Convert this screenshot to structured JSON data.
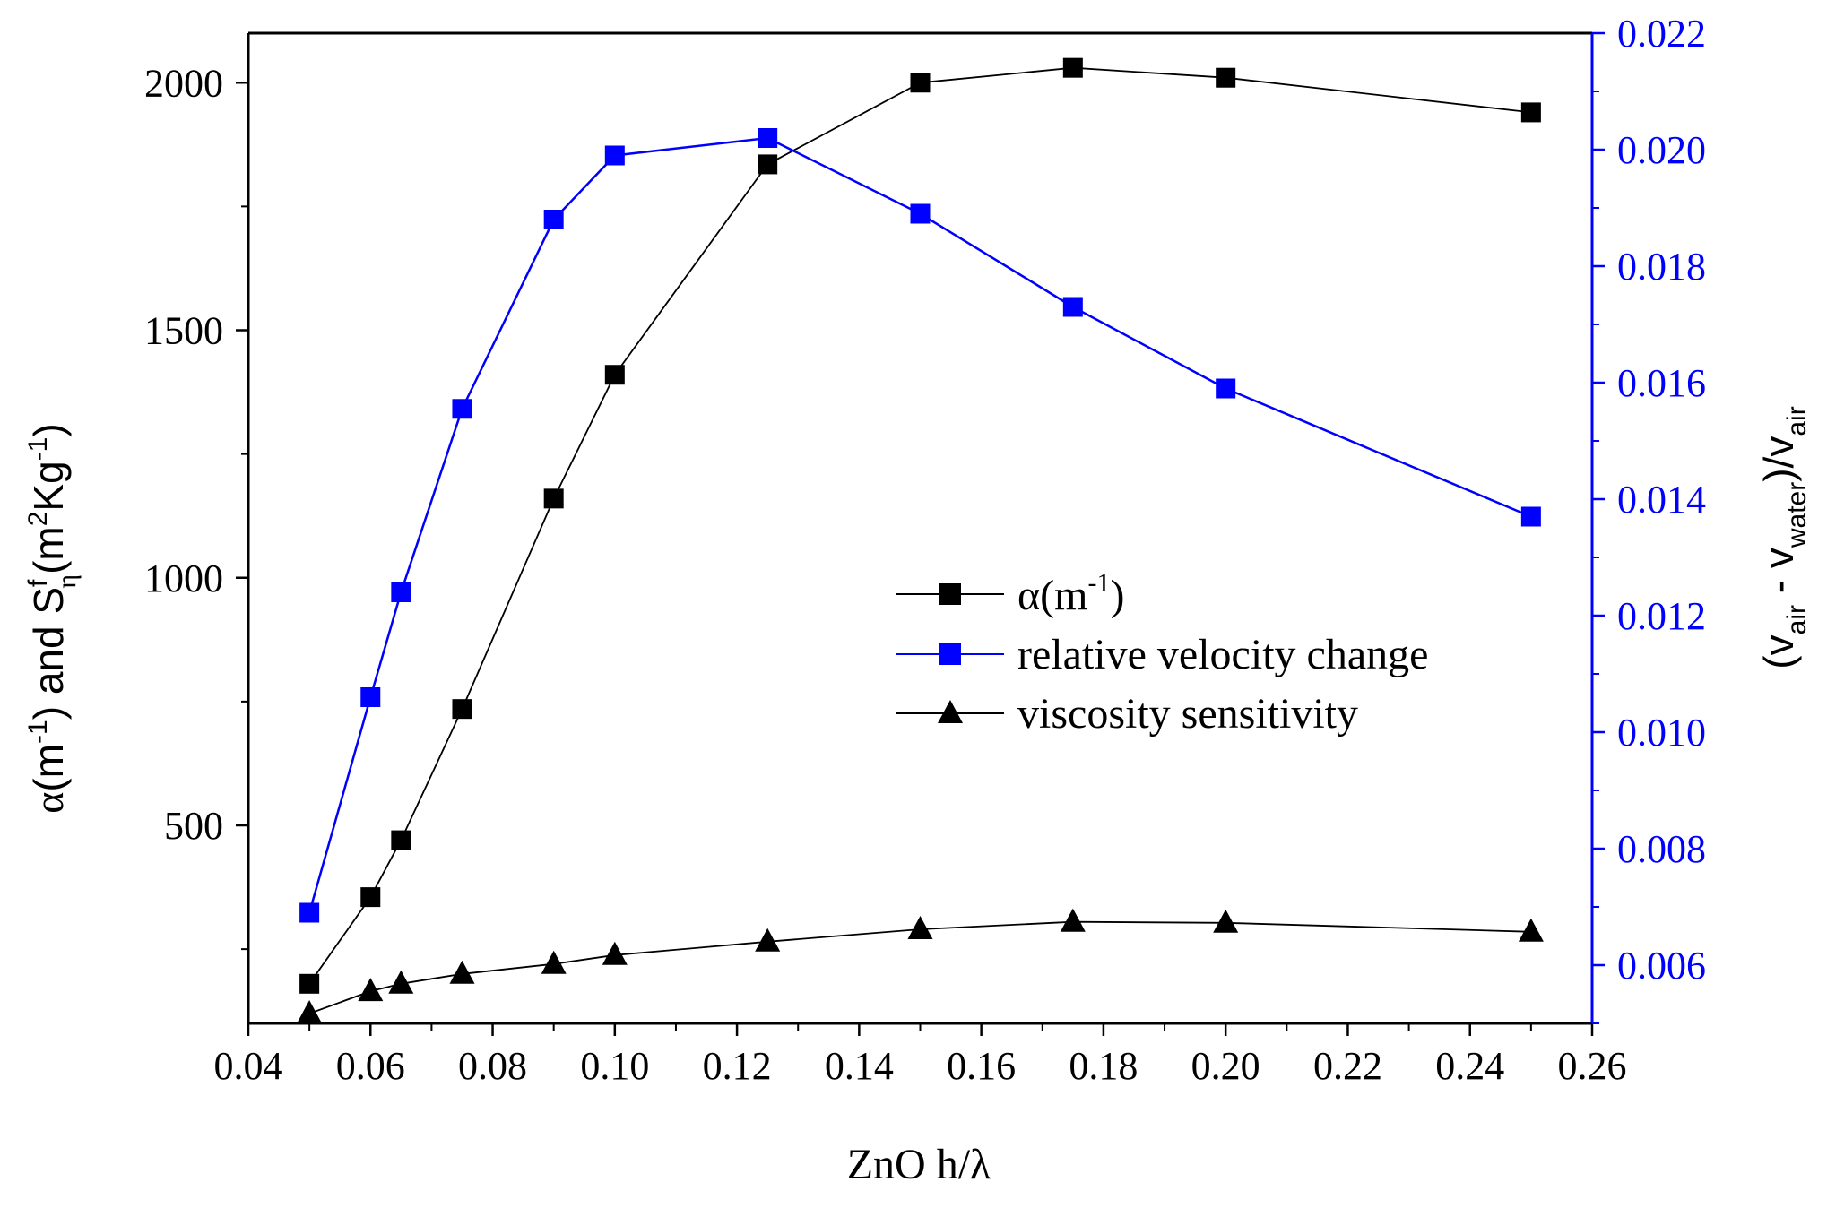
{
  "chart_data": {
    "type": "line",
    "title": "",
    "xlabel": "ZnO h/λ",
    "ylabel_left": {
      "alpha": "α",
      "m_open": "(m",
      "m_sup": "-1",
      "and_s": ") and S",
      "s_sup": "f",
      "s_sub": "η",
      "unit_open": "(m",
      "unit_sup1": "2",
      "unit_mid": "Kg",
      "unit_sup2": "-1",
      "unit_close": ")"
    },
    "ylabel_right": {
      "open": "(v",
      "sub1": "air",
      "minus": " - v",
      "sub2": "water",
      "close": ")/v",
      "sub3": "air"
    },
    "xlim": [
      0.04,
      0.26
    ],
    "ylim_left": [
      100,
      2100
    ],
    "ylim_right": [
      0.005,
      0.022
    ],
    "x_ticks": [
      0.04,
      0.06,
      0.08,
      0.1,
      0.12,
      0.14,
      0.16,
      0.18,
      0.2,
      0.22,
      0.24,
      0.26
    ],
    "x_tick_labels": [
      "0.04",
      "0.06",
      "0.08",
      "0.10",
      "0.12",
      "0.14",
      "0.16",
      "0.18",
      "0.20",
      "0.22",
      "0.24",
      "0.26"
    ],
    "y_left_ticks": [
      500,
      1000,
      1500,
      2000
    ],
    "y_left_tick_labels": [
      "500",
      "1000",
      "1500",
      "2000"
    ],
    "y_right_ticks": [
      0.006,
      0.008,
      0.01,
      0.012,
      0.014,
      0.016,
      0.018,
      0.02,
      0.022
    ],
    "y_right_tick_labels": [
      "0.006",
      "0.008",
      "0.010",
      "0.012",
      "0.014",
      "0.016",
      "0.018",
      "0.020",
      "0.022"
    ],
    "grid": false,
    "legend_position": "center",
    "series": [
      {
        "id": "alpha",
        "name": "α(m",
        "name_sup": "-1",
        "name_close": ")",
        "axis": "left",
        "marker": "square",
        "color": "#000000",
        "x": [
          0.05,
          0.06,
          0.065,
          0.075,
          0.09,
          0.1,
          0.125,
          0.15,
          0.175,
          0.2,
          0.25
        ],
        "y": [
          180,
          355,
          470,
          735,
          1160,
          1410,
          1835,
          2000,
          2030,
          2010,
          1940
        ]
      },
      {
        "id": "relvel",
        "name": "relative velocity change",
        "axis": "right",
        "marker": "square",
        "color": "#0000ff",
        "x": [
          0.05,
          0.06,
          0.065,
          0.075,
          0.09,
          0.1,
          0.125,
          0.15,
          0.175,
          0.2,
          0.25
        ],
        "y": [
          0.0069,
          0.0106,
          0.0124,
          0.01555,
          0.0188,
          0.0199,
          0.0202,
          0.0189,
          0.0173,
          0.0159,
          0.0137
        ]
      },
      {
        "id": "visc",
        "name": "viscosity sensitivity",
        "axis": "left",
        "marker": "triangle",
        "color": "#000000",
        "x": [
          0.05,
          0.06,
          0.065,
          0.075,
          0.09,
          0.1,
          0.125,
          0.15,
          0.175,
          0.2,
          0.25
        ],
        "y": [
          120,
          165,
          180,
          200,
          220,
          238,
          265,
          290,
          305,
          303,
          285
        ]
      }
    ],
    "colors": {
      "axis": "#000000",
      "right_axis": "#0000ff",
      "background": "#ffffff"
    }
  }
}
